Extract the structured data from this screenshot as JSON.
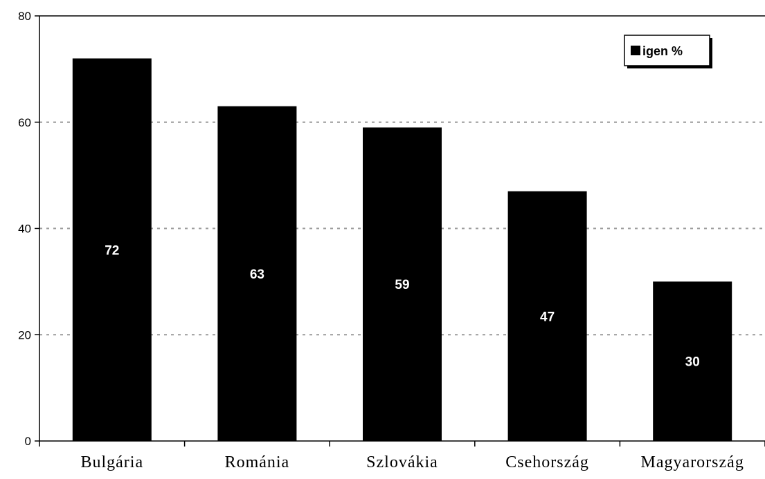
{
  "chart_data": {
    "type": "bar",
    "categories": [
      "Bulgária",
      "Románia",
      "Szlovákia",
      "Csehország",
      "Magyarország"
    ],
    "series": [
      {
        "name": "igen %",
        "values": [
          72,
          63,
          59,
          47,
          30
        ]
      }
    ],
    "data_labels": [
      "72",
      "63",
      "59",
      "47",
      "30"
    ],
    "ylim": [
      0,
      80
    ],
    "yticks": [
      0,
      20,
      40,
      60,
      80
    ],
    "title": "",
    "xlabel": "",
    "ylabel": "",
    "grid": "horizontal dashed",
    "legend_position": "top-right",
    "colors": {
      "bar": "#000000",
      "grid": "#9a9a9a",
      "data_label": "#ffffff"
    }
  }
}
